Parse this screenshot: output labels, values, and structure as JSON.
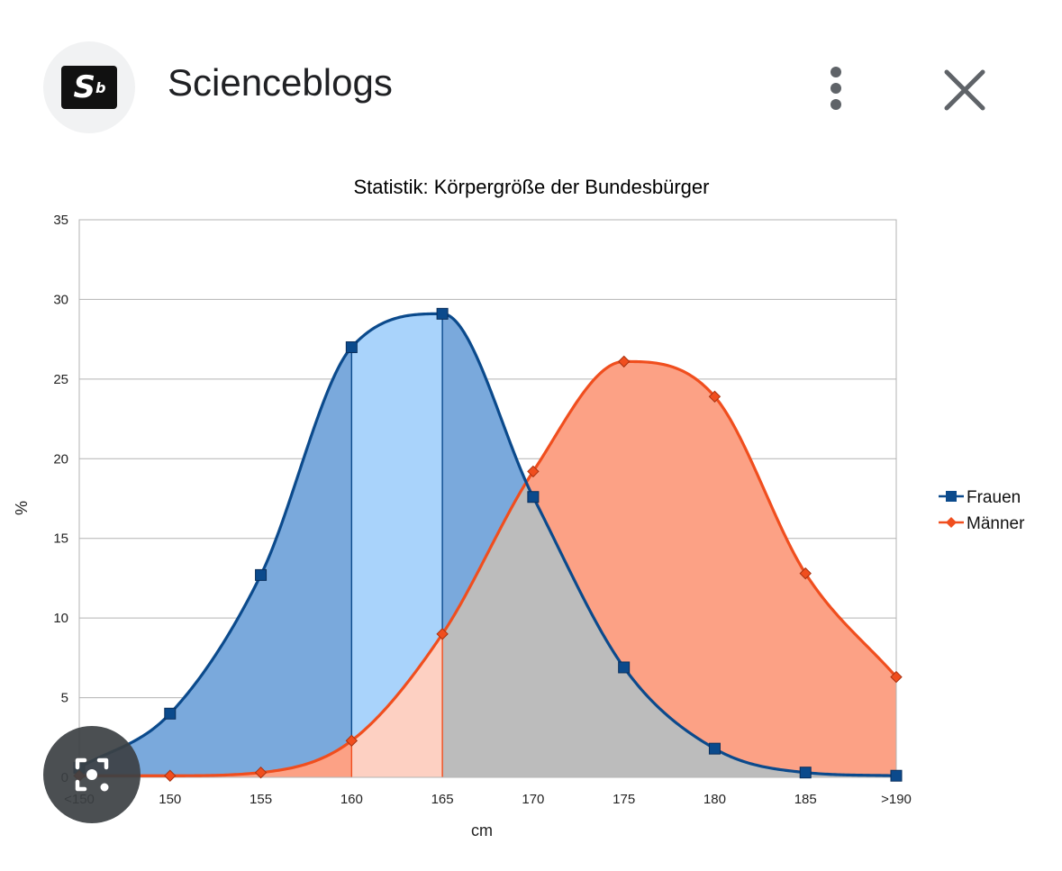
{
  "header": {
    "title": "Scienceblogs",
    "logo_text": "S",
    "logo_sup": "b",
    "more_icon": "more-vert-icon",
    "close_icon": "close-icon"
  },
  "lens": {
    "icon": "camera-search-icon"
  },
  "chart_data": {
    "type": "area",
    "title": "Statistik: Körpergröße der Bundesbürger",
    "xlabel": "cm",
    "ylabel": "%",
    "categories": [
      "<150",
      "150",
      "155",
      "160",
      "165",
      "170",
      "175",
      "180",
      "185",
      ">190"
    ],
    "ylim": [
      0,
      35
    ],
    "yticks": [
      0,
      5,
      10,
      15,
      20,
      25,
      30,
      35
    ],
    "grid": true,
    "legend_position": "right",
    "series": [
      {
        "name": "Frauen",
        "marker": "square",
        "color": "#0b4a8c",
        "fill": "#7aa9dc",
        "values": [
          0.6,
          4.0,
          12.7,
          27.0,
          29.1,
          17.6,
          6.9,
          1.8,
          0.3,
          0.1
        ]
      },
      {
        "name": "Männer",
        "marker": "diamond",
        "color": "#f04e1e",
        "fill": "#fca185",
        "values": [
          0.1,
          0.1,
          0.3,
          2.3,
          9.0,
          19.2,
          26.1,
          23.9,
          12.8,
          6.3
        ]
      }
    ],
    "highlight_range": [
      "160",
      "165"
    ],
    "overlap_color": "#bcbcbc"
  }
}
